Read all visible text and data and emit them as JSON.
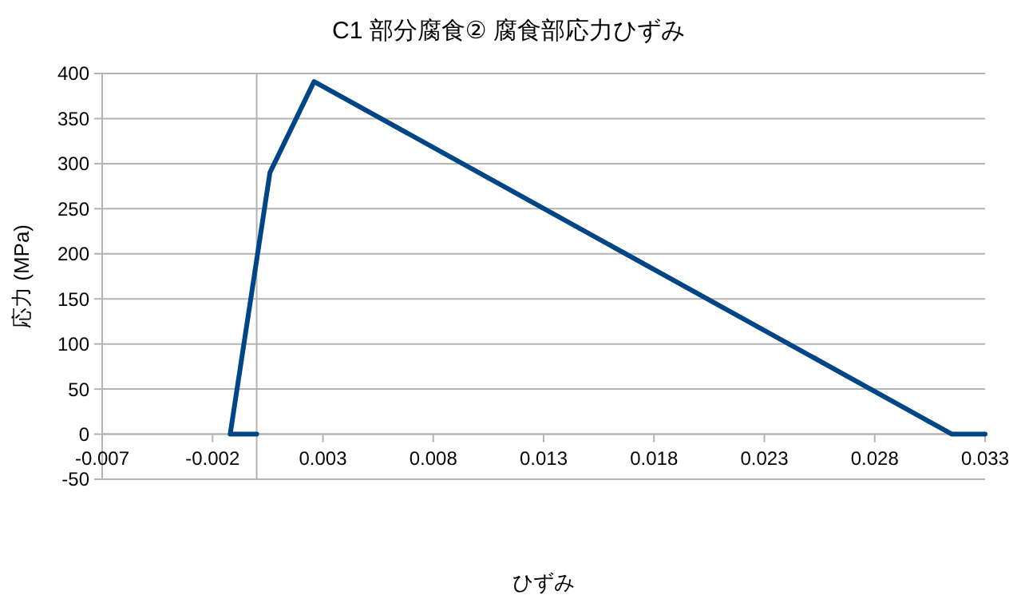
{
  "chart_data": {
    "type": "line",
    "title": "C1  部分腐食② 腐食部応力ひずみ",
    "xlabel": "ひずみ",
    "ylabel": "応力 (MPa)",
    "x": [
      0,
      -0.0012,
      0.0006,
      0.0026,
      0.0315,
      0.033
    ],
    "series": [
      {
        "color": "#004586",
        "values": [
          0,
          0,
          290,
          391,
          0,
          0
        ]
      }
    ],
    "xlim": [
      -0.007,
      0.033
    ],
    "xticks": [
      -0.007,
      -0.002,
      0.003,
      0.008,
      0.013,
      0.018,
      0.023,
      0.028,
      0.033
    ],
    "ylim": [
      -50,
      400
    ],
    "yticks": [
      -50,
      0,
      50,
      100,
      150,
      200,
      250,
      300,
      350,
      400
    ],
    "grid": "y",
    "marker": "none",
    "line_style": "solid"
  }
}
